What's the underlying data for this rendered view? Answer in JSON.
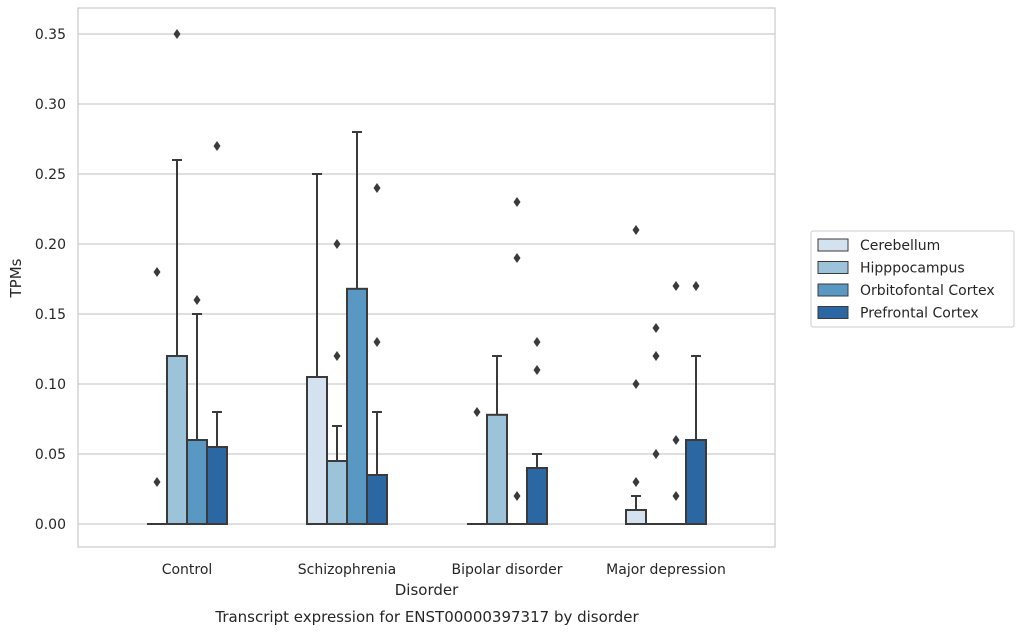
{
  "chart_data": {
    "type": "bar",
    "title": "",
    "caption": "Transcript expression for ENST00000397317 by disorder",
    "xlabel": "Disorder",
    "ylabel": "TPMs",
    "ylim": [
      -0.017,
      0.367
    ],
    "yticks": [
      0.0,
      0.05,
      0.1,
      0.15,
      0.2,
      0.25,
      0.3,
      0.35
    ],
    "ytick_labels": [
      "0.00",
      "0.05",
      "0.10",
      "0.15",
      "0.20",
      "0.25",
      "0.30",
      "0.35"
    ],
    "grid": "horizontal",
    "legend_position": "right",
    "categories": [
      "Control",
      "Schizophrenia",
      "Bipolar disorder",
      "Major depression"
    ],
    "series": [
      {
        "name": "Cerebellum",
        "color": "#d4e2f0",
        "values": [
          0.0,
          0.105,
          0.0,
          0.01
        ],
        "whisker_max": [
          null,
          0.25,
          null,
          0.02
        ],
        "outliers": [
          [
            0.03,
            0.18
          ],
          [],
          [
            0.08
          ],
          [
            0.03,
            0.1,
            0.21
          ]
        ]
      },
      {
        "name": "Hipppocampus",
        "color": "#9cc3da",
        "values": [
          0.12,
          0.045,
          0.078,
          0.0
        ],
        "whisker_max": [
          0.26,
          0.07,
          0.12,
          null
        ],
        "outliers": [
          [
            0.35
          ],
          [
            0.12,
            0.2
          ],
          [],
          [
            0.05,
            0.12,
            0.14
          ]
        ]
      },
      {
        "name": "Orbitofontal Cortex",
        "color": "#5a98c4",
        "values": [
          0.06,
          0.168,
          0.0,
          0.0
        ],
        "whisker_max": [
          0.15,
          0.28,
          null,
          null
        ],
        "outliers": [
          [
            0.16
          ],
          [],
          [
            0.02,
            0.19,
            0.23
          ],
          [
            0.02,
            0.06,
            0.17
          ]
        ]
      },
      {
        "name": "Prefrontal Cortex",
        "color": "#2a67a3",
        "values": [
          0.055,
          0.035,
          0.04,
          0.06
        ],
        "whisker_max": [
          0.08,
          0.08,
          0.05,
          0.12
        ],
        "outliers": [
          [
            0.27
          ],
          [
            0.13,
            0.24
          ],
          [
            0.11,
            0.13
          ],
          [
            0.17
          ]
        ]
      }
    ]
  }
}
